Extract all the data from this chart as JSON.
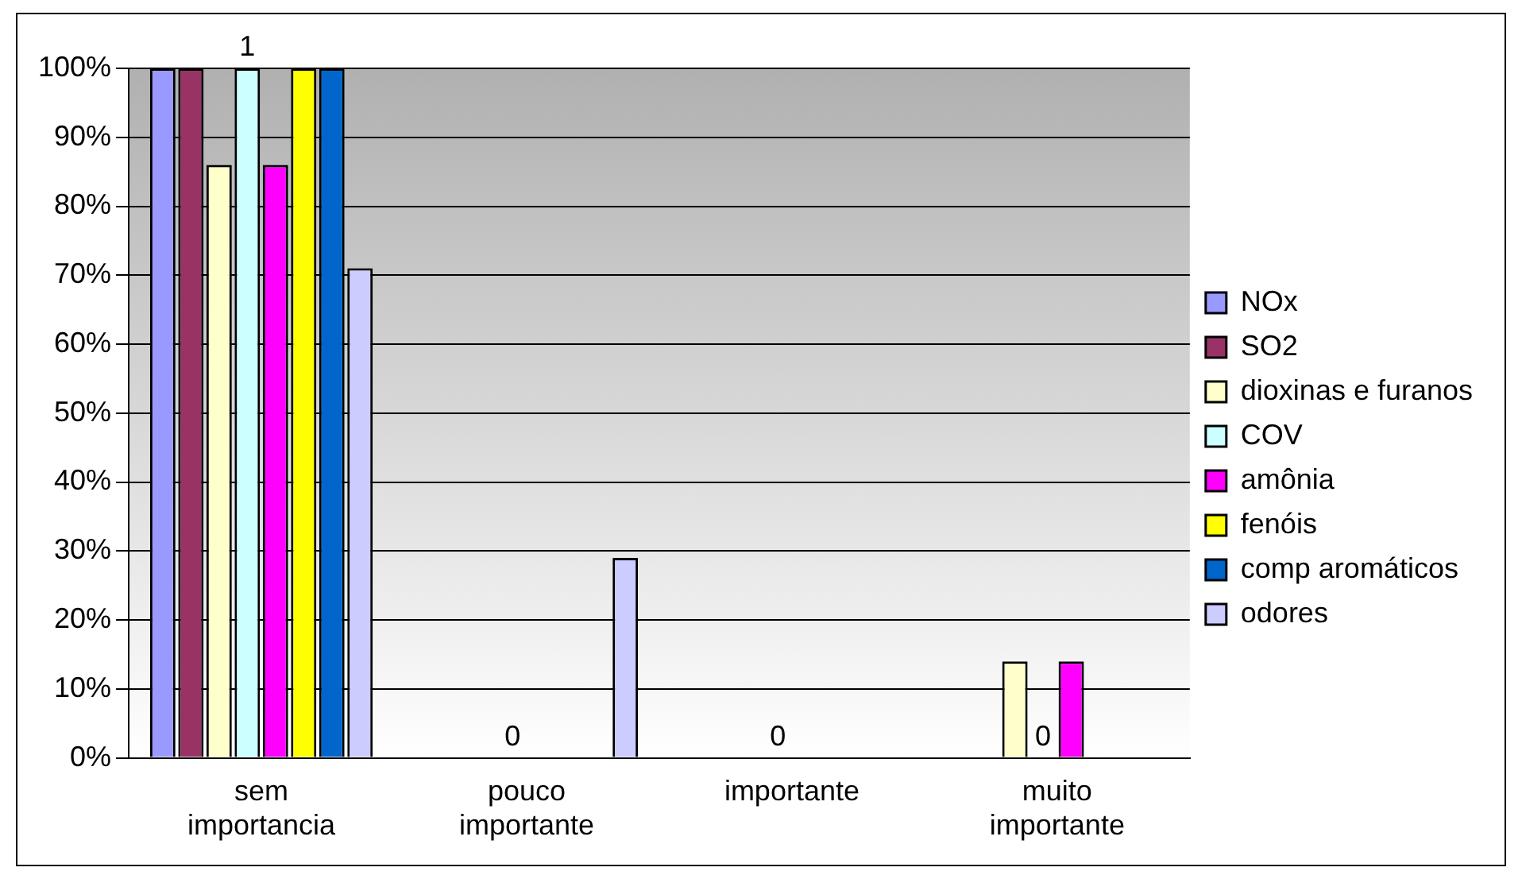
{
  "chart_data": {
    "type": "bar",
    "categories": [
      "sem importancia",
      "pouco importante",
      "importante",
      "muito importante"
    ],
    "series": [
      {
        "name": "NOx",
        "color": "#9999ff",
        "values": [
          100,
          0,
          0,
          0
        ]
      },
      {
        "name": "SO2",
        "color": "#993366",
        "values": [
          100,
          0,
          0,
          0
        ]
      },
      {
        "name": "dioxinas e furanos",
        "color": "#ffffcc",
        "values": [
          86,
          0,
          0,
          14
        ]
      },
      {
        "name": "COV",
        "color": "#ccffff",
        "values": [
          100,
          0,
          0,
          0
        ]
      },
      {
        "name": "amônia",
        "color": "#ff00ff",
        "values": [
          86,
          0,
          0,
          14
        ]
      },
      {
        "name": "fenóis",
        "color": "#ffff00",
        "values": [
          100,
          0,
          0,
          0
        ]
      },
      {
        "name": "comp aromáticos",
        "color": "#0066cc",
        "values": [
          100,
          0,
          0,
          0
        ]
      },
      {
        "name": "odores",
        "color": "#ccccff",
        "values": [
          71,
          29,
          0,
          0
        ]
      }
    ],
    "ylim": [
      0,
      100
    ],
    "yticks": [
      {
        "value": 0,
        "label": "0%"
      },
      {
        "value": 10,
        "label": "10%"
      },
      {
        "value": 20,
        "label": "20%"
      },
      {
        "value": 30,
        "label": "30%"
      },
      {
        "value": 40,
        "label": "40%"
      },
      {
        "value": 50,
        "label": "50%"
      },
      {
        "value": 60,
        "label": "60%"
      },
      {
        "value": 70,
        "label": "70%"
      },
      {
        "value": 80,
        "label": "80%"
      },
      {
        "value": 90,
        "label": "90%"
      },
      {
        "value": 100,
        "label": "100%"
      }
    ],
    "annotations": [
      {
        "text": "1",
        "x": "sem importancia",
        "y": 100
      },
      {
        "text": "0",
        "x": "pouco importante",
        "y": 0
      },
      {
        "text": "0",
        "x": "importante",
        "y": 0
      },
      {
        "text": "0",
        "x": "muito importante",
        "y": 0
      }
    ],
    "grid": "y",
    "legend": "right"
  }
}
